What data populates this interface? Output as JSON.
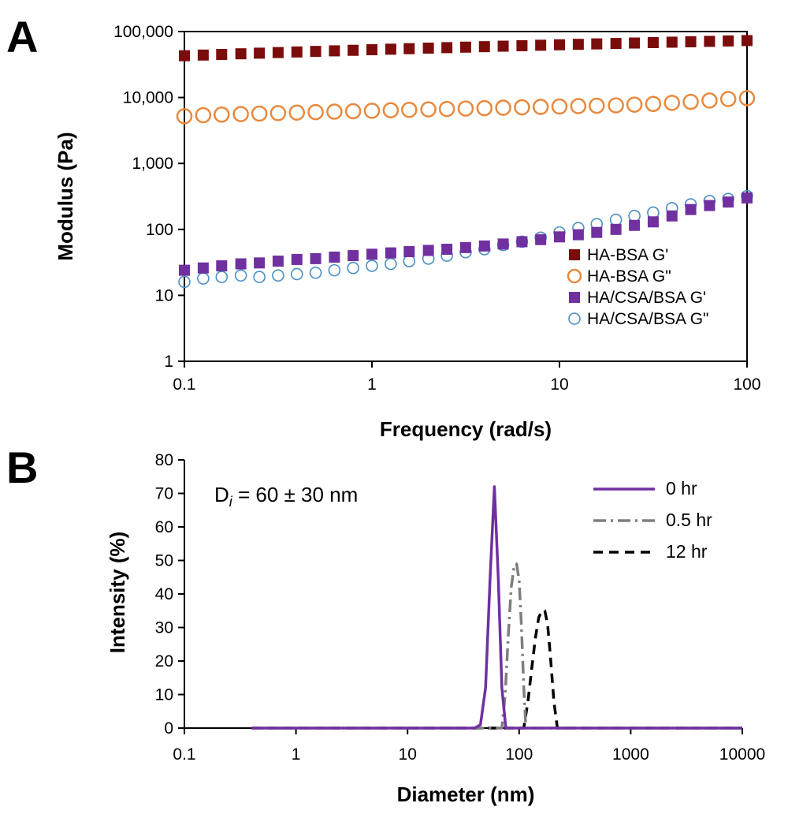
{
  "chart_data": [
    {
      "panel": "A",
      "type": "scatter",
      "xlabel": "Frequency (rad/s)",
      "ylabel": "Modulus (Pa)",
      "xscale": "log",
      "yscale": "log",
      "xlim": [
        0.1,
        100
      ],
      "ylim": [
        1,
        100000
      ],
      "x_ticks": [
        "0.1",
        "1",
        "10",
        "100"
      ],
      "y_ticks": [
        "1",
        "10",
        "100",
        "1,000",
        "10,000",
        "100,000"
      ],
      "grid": false,
      "legend_position": "lower-right",
      "series": [
        {
          "name": "HA-BSA G'",
          "marker": "filled-square",
          "color": "#7b0c0c",
          "x": [
            0.1,
            0.126,
            0.158,
            0.2,
            0.251,
            0.316,
            0.398,
            0.501,
            0.631,
            0.794,
            1.0,
            1.26,
            1.58,
            2.0,
            2.51,
            3.16,
            3.98,
            5.01,
            6.31,
            7.94,
            10.0,
            12.6,
            15.8,
            20.0,
            25.1,
            31.6,
            39.8,
            50.1,
            63.1,
            79.4,
            100
          ],
          "y": [
            43000,
            44000,
            45000,
            46000,
            47000,
            48000,
            49000,
            50000,
            51000,
            52000,
            53000,
            54000,
            55000,
            56000,
            57000,
            58000,
            59000,
            60000,
            61000,
            62000,
            63000,
            64000,
            65000,
            66000,
            67000,
            68000,
            69000,
            70000,
            71000,
            72000,
            73000
          ]
        },
        {
          "name": "HA-BSA G\"",
          "marker": "open-circle",
          "color": "#e8893e",
          "x": [
            0.1,
            0.126,
            0.158,
            0.2,
            0.251,
            0.316,
            0.398,
            0.501,
            0.631,
            0.794,
            1.0,
            1.26,
            1.58,
            2.0,
            2.51,
            3.16,
            3.98,
            5.01,
            6.31,
            7.94,
            10.0,
            12.6,
            15.8,
            20.0,
            25.1,
            31.6,
            39.8,
            50.1,
            63.1,
            79.4,
            100
          ],
          "y": [
            5200,
            5400,
            5500,
            5600,
            5700,
            5800,
            5900,
            6000,
            6100,
            6200,
            6300,
            6400,
            6500,
            6600,
            6700,
            6800,
            6900,
            7000,
            7100,
            7200,
            7300,
            7400,
            7500,
            7600,
            7800,
            8000,
            8300,
            8600,
            9000,
            9500,
            9800
          ]
        },
        {
          "name": "HA/CSA/BSA G'",
          "marker": "filled-square",
          "color": "#7030a0",
          "x": [
            0.1,
            0.126,
            0.158,
            0.2,
            0.251,
            0.316,
            0.398,
            0.501,
            0.631,
            0.794,
            1.0,
            1.26,
            1.58,
            2.0,
            2.51,
            3.16,
            3.98,
            5.01,
            6.31,
            7.94,
            10.0,
            12.6,
            15.8,
            20.0,
            25.1,
            31.6,
            39.8,
            50.1,
            63.1,
            79.4,
            100
          ],
          "y": [
            24,
            26,
            28,
            30,
            31,
            33,
            35,
            36,
            38,
            40,
            42,
            44,
            46,
            48,
            50,
            53,
            56,
            60,
            65,
            70,
            77,
            83,
            90,
            100,
            115,
            130,
            160,
            200,
            230,
            260,
            300
          ]
        },
        {
          "name": "HA/CSA/BSA G\"",
          "marker": "open-circle",
          "color": "#4a8fc4",
          "x": [
            0.1,
            0.126,
            0.158,
            0.2,
            0.251,
            0.316,
            0.398,
            0.501,
            0.631,
            0.794,
            1.0,
            1.26,
            1.58,
            2.0,
            2.51,
            3.16,
            3.98,
            5.01,
            6.31,
            7.94,
            10.0,
            12.6,
            15.8,
            20.0,
            25.1,
            31.6,
            39.8,
            50.1,
            63.1,
            79.4,
            100
          ],
          "y": [
            16,
            18,
            19,
            20,
            19,
            20,
            21,
            22,
            24,
            26,
            28,
            30,
            33,
            36,
            40,
            45,
            50,
            58,
            65,
            75,
            90,
            105,
            120,
            140,
            160,
            180,
            210,
            240,
            270,
            290,
            320
          ]
        }
      ]
    },
    {
      "panel": "B",
      "type": "line",
      "xlabel": "Diameter (nm)",
      "ylabel": "Intensity (%)",
      "xscale": "log",
      "xlim": [
        0.1,
        10000
      ],
      "ylim": [
        0,
        80
      ],
      "x_ticks": [
        "0.1",
        "1",
        "10",
        "100",
        "1000",
        "10000"
      ],
      "y_ticks": [
        "0",
        "10",
        "20",
        "30",
        "40",
        "50",
        "60",
        "70",
        "80"
      ],
      "grid": false,
      "legend_position": "top-right",
      "annotation": {
        "base": "D",
        "sub": "i",
        "rest": " = 60 ± 30 nm"
      },
      "series": [
        {
          "name": "0 hr",
          "color": "#7030a0",
          "dash": "solid",
          "x": [
            0.4,
            40,
            45,
            50,
            55,
            60,
            65,
            70,
            76,
            10000
          ],
          "y": [
            0,
            0,
            1,
            12,
            45,
            72,
            45,
            12,
            0,
            0
          ]
        },
        {
          "name": "0.5 hr",
          "color": "#7f7f7f",
          "dash": "dash-dot",
          "x": [
            0.4,
            70,
            75,
            80,
            85,
            90,
            95,
            100,
            105,
            110,
            115,
            10000
          ],
          "y": [
            0,
            0,
            10,
            28,
            42,
            48,
            49,
            44,
            30,
            12,
            0,
            0
          ]
        },
        {
          "name": "12 hr",
          "color": "#000000",
          "dash": "dash",
          "x": [
            0.4,
            110,
            120,
            130,
            140,
            150,
            160,
            170,
            180,
            190,
            205,
            220,
            10000
          ],
          "y": [
            0,
            0,
            8,
            18,
            27,
            33,
            35,
            35,
            31,
            22,
            8,
            0,
            0
          ]
        }
      ]
    }
  ]
}
